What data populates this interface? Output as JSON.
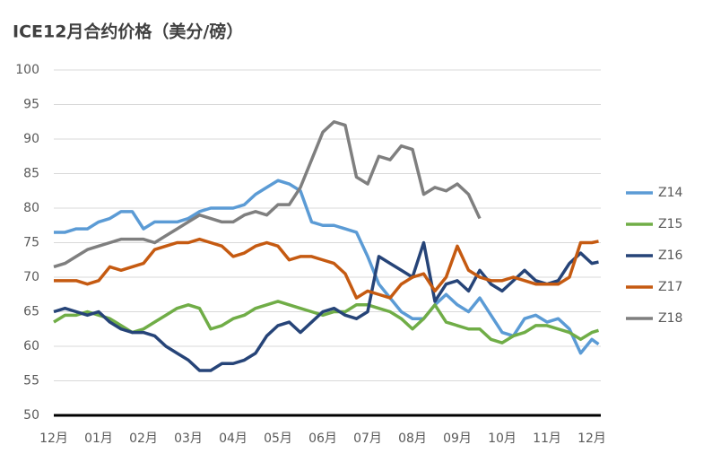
{
  "chart_data": {
    "type": "line",
    "title": "ICE12月合约价格（美分/磅）",
    "x": [
      0,
      0.25,
      0.5,
      0.75,
      1,
      1.25,
      1.5,
      1.75,
      2,
      2.25,
      2.5,
      2.75,
      3,
      3.25,
      3.5,
      3.75,
      4,
      4.25,
      4.5,
      4.75,
      5,
      5.25,
      5.5,
      5.75,
      6,
      6.25,
      6.5,
      6.75,
      7,
      7.25,
      7.5,
      7.75,
      8,
      8.25,
      8.5,
      8.75,
      9,
      9.25,
      9.5,
      9.75,
      10,
      10.25,
      10.5,
      10.75,
      11,
      11.25,
      11.5,
      11.75,
      12,
      12.15
    ],
    "xlim": [
      0,
      12.2
    ],
    "xticks": [
      {
        "value": 0,
        "label": "12月"
      },
      {
        "value": 1,
        "label": "01月"
      },
      {
        "value": 2,
        "label": "02月"
      },
      {
        "value": 3,
        "label": "03月"
      },
      {
        "value": 4,
        "label": "04月"
      },
      {
        "value": 5,
        "label": "05月"
      },
      {
        "value": 6,
        "label": "06月"
      },
      {
        "value": 7,
        "label": "07月"
      },
      {
        "value": 8,
        "label": "08月"
      },
      {
        "value": 9,
        "label": "09月"
      },
      {
        "value": 10,
        "label": "10月"
      },
      {
        "value": 11,
        "label": "11月"
      },
      {
        "value": 12,
        "label": "12月"
      }
    ],
    "ylim": [
      50,
      100
    ],
    "yticks": [
      50,
      55,
      60,
      65,
      70,
      75,
      80,
      85,
      90,
      95,
      100
    ],
    "grid": true,
    "legend": "right",
    "series": [
      {
        "name": "Z14",
        "color": "#5b9bd5",
        "values": [
          76.5,
          76.5,
          77,
          77,
          78,
          78.5,
          79.5,
          79.5,
          77,
          78,
          78,
          78,
          78.5,
          79.5,
          80,
          80,
          80,
          80.5,
          82,
          83,
          84,
          83.5,
          82.5,
          78,
          77.5,
          77.5,
          77,
          76.5,
          73,
          69,
          67,
          65,
          64,
          64,
          66,
          67.5,
          66,
          65,
          67,
          64.5,
          62,
          61.5,
          64,
          64.5,
          63.5,
          64,
          62.5,
          59,
          61,
          60.3
        ]
      },
      {
        "name": "Z15",
        "color": "#70ad47",
        "values": [
          63.5,
          64.5,
          64.5,
          65,
          64.5,
          64,
          63,
          62,
          62.5,
          63.5,
          64.5,
          65.5,
          66,
          65.5,
          62.5,
          63,
          64,
          64.5,
          65.5,
          66,
          66.5,
          66,
          65.5,
          65,
          64.5,
          65,
          65,
          66,
          66,
          65.5,
          65,
          64,
          62.5,
          64,
          66,
          63.5,
          63,
          62.5,
          62.5,
          61,
          60.5,
          61.5,
          62,
          63,
          63,
          62.5,
          62,
          61,
          62,
          62.3
        ]
      },
      {
        "name": "Z16",
        "color": "#264478",
        "values": [
          65,
          65.5,
          65,
          64.5,
          65,
          63.5,
          62.5,
          62,
          62,
          61.5,
          60,
          59,
          58,
          56.5,
          56.5,
          57.5,
          57.5,
          58,
          59,
          61.5,
          63,
          63.5,
          62,
          63.5,
          65,
          65.5,
          64.5,
          64,
          65,
          73,
          72,
          71,
          70,
          75,
          66.5,
          69,
          69.5,
          68,
          71,
          69,
          68,
          69.5,
          71,
          69.5,
          69,
          69.5,
          72,
          73.5,
          72,
          72.2
        ]
      },
      {
        "name": "Z17",
        "color": "#c55a11",
        "values": [
          69.5,
          69.5,
          69.5,
          69,
          69.5,
          71.5,
          71,
          71.5,
          72,
          74,
          74.5,
          75,
          75,
          75.5,
          75,
          74.5,
          73,
          73.5,
          74.5,
          75,
          74.5,
          72.5,
          73,
          73,
          72.5,
          72,
          70.5,
          67,
          68,
          67.5,
          67,
          69,
          70,
          70.5,
          68,
          70,
          74.5,
          71,
          70,
          69.5,
          69.5,
          70,
          69.5,
          69,
          69,
          69,
          70,
          75,
          75,
          75.2
        ]
      },
      {
        "name": "Z18",
        "color": "#7f7f7f",
        "values": [
          71.5,
          72,
          73,
          74,
          74.5,
          75,
          75.5,
          75.5,
          75.5,
          75,
          76,
          77,
          78,
          79,
          78.5,
          78,
          78,
          79,
          79.5,
          79,
          80.5,
          80.5,
          83,
          87,
          91,
          92.5,
          92,
          84.5,
          83.5,
          87.5,
          87,
          89,
          88.5,
          82,
          83,
          82.5,
          83.5,
          82,
          78.5,
          null,
          null,
          null,
          null,
          null,
          null,
          null,
          null,
          null,
          null,
          null
        ]
      }
    ]
  }
}
